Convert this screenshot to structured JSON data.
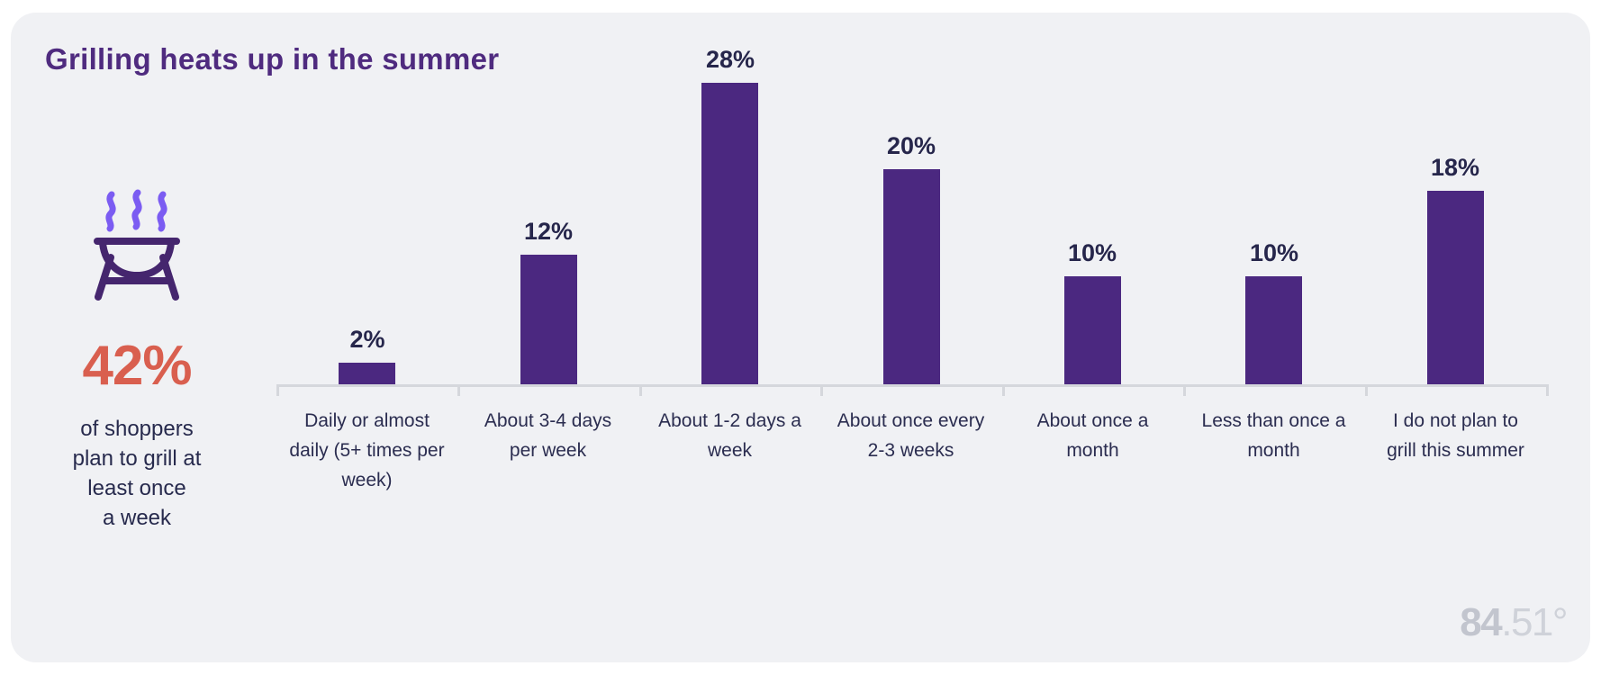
{
  "title": "Grilling heats up in the summer",
  "stat": {
    "value": "42%",
    "description": "of shoppers\nplan to grill at\nleast once\na week"
  },
  "chart_data": {
    "type": "bar",
    "title": "Grilling heats up in the summer",
    "categories": [
      "Daily or almost\ndaily (5+ times per\nweek)",
      "About 3-4 days\nper week",
      "About 1-2 days a\nweek",
      "About once every\n2-3 weeks",
      "About once a\nmonth",
      "Less than once a\nmonth",
      "I do not plan to\ngrill this summer"
    ],
    "values": [
      2,
      12,
      28,
      20,
      10,
      10,
      18
    ],
    "value_labels": [
      "2%",
      "12%",
      "28%",
      "20%",
      "10%",
      "10%",
      "18%"
    ],
    "xlabel": "",
    "ylabel": "",
    "ylim": [
      0,
      30
    ],
    "grid": false,
    "legend": false,
    "bar_color": "#4B2880",
    "axis_color": "#D5D7DC",
    "label_color": "#26264B"
  },
  "icons": {
    "grill_icon": "charcoal-grill-with-steam",
    "steam_color": "#7B5CF2",
    "grill_color": "#45266E"
  },
  "colors": {
    "card_background": "#F0F1F4",
    "page_background": "#FFFFFF",
    "title_color": "#4F2B7F",
    "stat_color": "#D95F4F",
    "text_color": "#272A4D",
    "logo_color": "#C6C9D2"
  },
  "logo": {
    "prefix": "84",
    "suffix": ".51°"
  }
}
